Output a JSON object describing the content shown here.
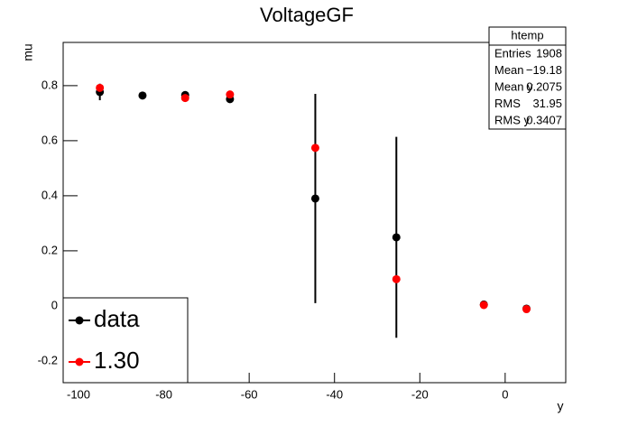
{
  "chart_data": {
    "type": "scatter",
    "title": "VoltageGF",
    "x_label": "y",
    "y_label": "mu",
    "x": [
      -95,
      -85,
      -75,
      -64.5,
      -44.5,
      -25.5,
      -5,
      5
    ],
    "series": [
      {
        "name": "data",
        "color": "#000000",
        "values": [
          0.777,
          0.764,
          0.766,
          0.751,
          0.39,
          0.249,
          0.005,
          -0.01
        ],
        "errors": [
          0.03,
          0.005,
          0.005,
          0.005,
          0.38,
          0.365,
          0.005,
          0.005
        ]
      },
      {
        "name": "1.30",
        "color": "#ff0000",
        "values": [
          0.792,
          null,
          0.755,
          0.768,
          0.574,
          0.097,
          0.003,
          -0.012
        ]
      }
    ],
    "xlim": [
      -103.6,
      14.2
    ],
    "ylim": [
      -0.279,
      0.957
    ],
    "xticks": [
      -100,
      -80,
      -60,
      -40,
      -20,
      0
    ],
    "yticks": [
      -0.2,
      0,
      0.2,
      0.4,
      0.6,
      0.8
    ],
    "legend": "bottom-left",
    "stats": {
      "title": "htemp",
      "rows": [
        [
          "Entries",
          "1908"
        ],
        [
          "Mean",
          "−19.18"
        ],
        [
          "Mean y",
          "0.2075"
        ],
        [
          "RMS",
          "31.95"
        ],
        [
          "RMS y",
          "0.3407"
        ]
      ]
    }
  }
}
